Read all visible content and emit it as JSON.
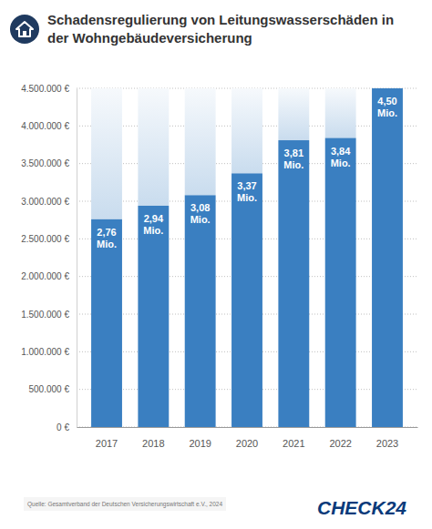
{
  "chart_data": {
    "type": "bar",
    "title": "Schadensregulierung von Leitungswasserschäden in der Wohngebäudeversicherung",
    "categories": [
      "2017",
      "2018",
      "2019",
      "2020",
      "2021",
      "2022",
      "2023"
    ],
    "values": [
      2760000,
      2940000,
      3080000,
      3370000,
      3810000,
      3840000,
      4500000
    ],
    "value_labels": [
      "2,76 Mio.",
      "2,94 Mio.",
      "3,08 Mio.",
      "3,37 Mio.",
      "3,81 Mio.",
      "3,84 Mio.",
      "4,50 Mio."
    ],
    "data_labels": true,
    "color": "#3a7fc1",
    "ylim": [
      0,
      4500000
    ],
    "yticks": [
      {
        "value": 0,
        "label": "0 €"
      },
      {
        "value": 500000,
        "label": "500.000 €"
      },
      {
        "value": 1000000,
        "label": "1.000.000 €"
      },
      {
        "value": 1500000,
        "label": "1.500.000 €"
      },
      {
        "value": 2000000,
        "label": "2.000.000 €"
      },
      {
        "value": 2500000,
        "label": "2.500.000 €"
      },
      {
        "value": 3000000,
        "label": "3.000.000 €"
      },
      {
        "value": 3500000,
        "label": "3.500.000 €"
      },
      {
        "value": 4000000,
        "label": "4.000.000 €"
      },
      {
        "value": 4500000,
        "label": "4.500.000 €"
      }
    ],
    "grid": true,
    "source": "Quelle: Gesamtverband der Deutschen Versicherungswirtschaft e.V., 2024",
    "logo": "CHECK24"
  }
}
